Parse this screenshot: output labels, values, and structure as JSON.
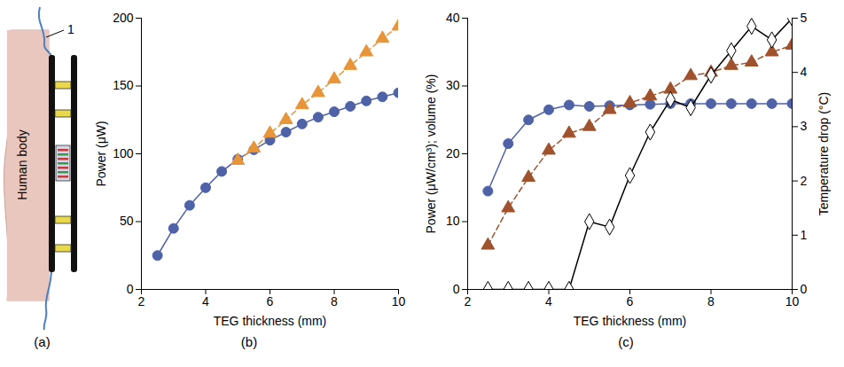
{
  "diagram": {
    "panel": "(a)",
    "body_label": "Human body",
    "callout": "1"
  },
  "chart_data": [
    {
      "type": "line",
      "panel": "(b)",
      "x_label": "TEG thickness (mm)",
      "y_label": "Power (μW)",
      "x": [
        2.5,
        3,
        3.5,
        4,
        4.5,
        5,
        5.5,
        6,
        6.5,
        7,
        7.5,
        8,
        8.5,
        9,
        9.5,
        10
      ],
      "xlim": [
        2,
        10
      ],
      "xticks": [
        2,
        4,
        6,
        8,
        10
      ],
      "ylim": [
        0,
        200
      ],
      "yticks": [
        0,
        50,
        100,
        150,
        200
      ],
      "series": [
        {
          "color": "#4f62a8",
          "marker": "circle",
          "line_style": "solid",
          "values": [
            25,
            45,
            62,
            75,
            87,
            96,
            103,
            110,
            116,
            122,
            127,
            131,
            135,
            139,
            142,
            145
          ]
        },
        {
          "color": "#e8953a",
          "marker": "triangle",
          "line_style": "dashed",
          "values": [
            null,
            null,
            null,
            null,
            null,
            95,
            104,
            115,
            125,
            136,
            145,
            155,
            165,
            175,
            185,
            194
          ]
        }
      ]
    },
    {
      "type": "line",
      "panel": "(c)",
      "x_label": "TEG thickness (mm)",
      "y_label": "Power (μW/cm³); volume (%)",
      "y2_label": "Temperature drop (°C)",
      "x": [
        2.5,
        3,
        3.5,
        4,
        4.5,
        5,
        5.5,
        6,
        6.5,
        7,
        7.5,
        8,
        8.5,
        9,
        9.5,
        10
      ],
      "xlim": [
        2,
        10
      ],
      "xticks": [
        2,
        4,
        6,
        8,
        10
      ],
      "ylim": [
        0,
        40
      ],
      "yticks": [
        0,
        10,
        20,
        30,
        40
      ],
      "y2lim": [
        0,
        5
      ],
      "y2ticks": [
        0,
        1,
        2,
        3,
        4,
        5
      ],
      "series": [
        {
          "color": "#4f62a8",
          "marker": "circle",
          "line_style": "solid",
          "values": [
            14.5,
            21.5,
            25,
            26.5,
            27.2,
            27,
            27.1,
            27.2,
            27.3,
            27.4,
            27.4,
            27.4,
            27.4,
            27.4,
            27.4,
            27.4
          ]
        },
        {
          "color": "#a0522d",
          "marker": "triangle",
          "line_style": "dashed",
          "values": [
            6.5,
            12,
            16.5,
            20.5,
            23,
            24,
            26.5,
            27.5,
            28.5,
            29.5,
            31.5,
            32,
            33,
            33.5,
            35,
            36
          ]
        },
        {
          "color": "#000000",
          "marker": "open_diamond",
          "line_style": "solid",
          "axis": "y2",
          "values": [
            0,
            0,
            0,
            0,
            0,
            1.25,
            1.15,
            2.1,
            2.9,
            3.5,
            3.35,
            3.95,
            4.4,
            4.85,
            4.6,
            5.0
          ]
        }
      ]
    }
  ]
}
